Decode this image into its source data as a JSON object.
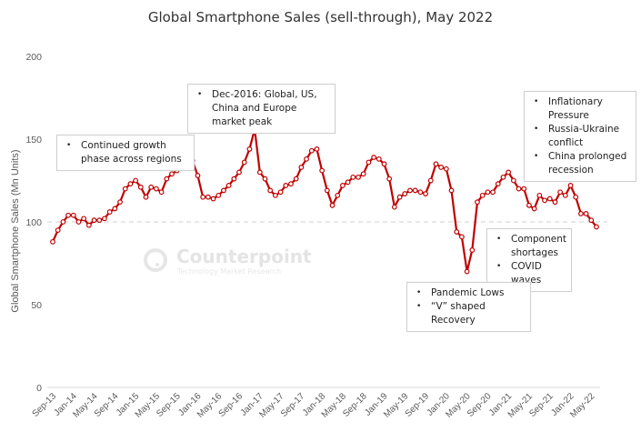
{
  "chart_data": {
    "type": "line",
    "title": "Global Smartphone Sales (sell-through), May 2022",
    "xlabel": "",
    "ylabel": "Global Smartphone Sales (Mn Units)",
    "ylim": [
      0,
      200
    ],
    "yticks": [
      0,
      50,
      100,
      150,
      200
    ],
    "reference_line": 100,
    "grid": false,
    "x_tick_labels": [
      "Sep-13",
      "Jan-14",
      "May-14",
      "Sep-14",
      "Jan-15",
      "May-15",
      "Sep-15",
      "Jan-16",
      "May-16",
      "Sep-16",
      "Jan-17",
      "May-17",
      "Sep-17",
      "Jan-18",
      "May-18",
      "Sep-18",
      "Jan-19",
      "May-19",
      "Sep-19",
      "Jan-20",
      "May-20",
      "Sep-20",
      "Jan-21",
      "May-21",
      "Sep-21",
      "Jan-22",
      "May-22"
    ],
    "x_start": "Sep-13",
    "x_end": "May-22",
    "series": [
      {
        "name": "Global Smartphone Sales",
        "color": "#c00000",
        "values": [
          88,
          95,
          100,
          104,
          104,
          100,
          102,
          98,
          101,
          101,
          102,
          106,
          108,
          112,
          120,
          123,
          125,
          121,
          115,
          121,
          120,
          118,
          126,
          129,
          131,
          133,
          135,
          137,
          128,
          115,
          115,
          114,
          116,
          119,
          122,
          126,
          130,
          136,
          144,
          156,
          130,
          126,
          119,
          116,
          118,
          122,
          123,
          126,
          133,
          138,
          143,
          144,
          131,
          119,
          110,
          116,
          122,
          124,
          127,
          127,
          129,
          136,
          139,
          138,
          135,
          126,
          109,
          115,
          117,
          119,
          119,
          118,
          117,
          125,
          135,
          133,
          132,
          119,
          94,
          91,
          70,
          83,
          112,
          116,
          118,
          118,
          123,
          127,
          130,
          125,
          120,
          120,
          110,
          108,
          116,
          113,
          114,
          112,
          118,
          116,
          122,
          115,
          105,
          105,
          101,
          97
        ]
      }
    ],
    "annotations": [
      {
        "items": [
          "Continued growth phase across regions"
        ]
      },
      {
        "items": [
          "Dec-2016: Global, US, China and Europe market peak"
        ]
      },
      {
        "items": [
          "Inflationary Pressure",
          "Russia-Ukraine conflict",
          "China prolonged recession"
        ]
      },
      {
        "items": [
          "Component shortages",
          "COVID waves"
        ]
      },
      {
        "items": [
          "Pandemic Lows",
          "“V” shaped Recovery"
        ]
      }
    ]
  },
  "watermark": {
    "name": "Counterpoint",
    "tagline": "Technology Market Research"
  }
}
